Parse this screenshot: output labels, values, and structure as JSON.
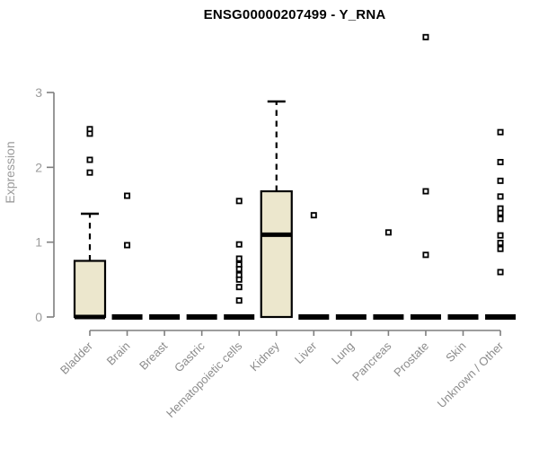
{
  "title": "ENSG00000207499 - Y_RNA",
  "chart_data": {
    "type": "boxplot",
    "title": "ENSG00000207499 - Y_RNA",
    "xlabel": "",
    "ylabel": "Expression",
    "ylim": [
      0,
      3
    ],
    "yticks": [
      "0",
      "1",
      "2",
      "3"
    ],
    "grid": false,
    "legend": null,
    "categories": [
      "Bladder",
      "Brain",
      "Breast",
      "Gastric",
      "Hematopoietic cells",
      "Kidney",
      "Liver",
      "Lung",
      "Pancreas",
      "Prostate",
      "Skin",
      "Unknown / Other"
    ],
    "series": [
      {
        "category": "Bladder",
        "q1": 0,
        "median": 0,
        "q3": 0.75,
        "whisker_low": 0,
        "whisker_high": 1.38,
        "outliers": [
          2.51,
          2.45,
          2.1,
          1.93
        ]
      },
      {
        "category": "Brain",
        "q1": 0,
        "median": 0,
        "q3": 0,
        "whisker_low": 0,
        "whisker_high": 0,
        "outliers": [
          1.62,
          0.96
        ]
      },
      {
        "category": "Breast",
        "q1": 0,
        "median": 0,
        "q3": 0,
        "whisker_low": 0,
        "whisker_high": 0,
        "outliers": []
      },
      {
        "category": "Gastric",
        "q1": 0,
        "median": 0,
        "q3": 0,
        "whisker_low": 0,
        "whisker_high": 0,
        "outliers": []
      },
      {
        "category": "Hematopoietic cells",
        "q1": 0,
        "median": 0,
        "q3": 0,
        "whisker_low": 0,
        "whisker_high": 0,
        "outliers": [
          1.55,
          0.97,
          0.78,
          0.7,
          0.64,
          0.56,
          0.5,
          0.4,
          0.22
        ]
      },
      {
        "category": "Kidney",
        "q1": 0,
        "median": 1.1,
        "q3": 1.68,
        "whisker_low": 0,
        "whisker_high": 2.88,
        "outliers": []
      },
      {
        "category": "Liver",
        "q1": 0,
        "median": 0,
        "q3": 0,
        "whisker_low": 0,
        "whisker_high": 0,
        "outliers": [
          1.36
        ]
      },
      {
        "category": "Lung",
        "q1": 0,
        "median": 0,
        "q3": 0,
        "whisker_low": 0,
        "whisker_high": 0,
        "outliers": []
      },
      {
        "category": "Pancreas",
        "q1": 0,
        "median": 0,
        "q3": 0,
        "whisker_low": 0,
        "whisker_high": 0,
        "outliers": [
          1.13
        ]
      },
      {
        "category": "Prostate",
        "q1": 0,
        "median": 0,
        "q3": 0,
        "whisker_low": 0,
        "whisker_high": 0,
        "outliers": [
          3.74,
          1.68,
          0.83
        ]
      },
      {
        "category": "Skin",
        "q1": 0,
        "median": 0,
        "q3": 0,
        "whisker_low": 0,
        "whisker_high": 0,
        "outliers": []
      },
      {
        "category": "Unknown / Other",
        "q1": 0,
        "median": 0,
        "q3": 0,
        "whisker_low": 0,
        "whisker_high": 0,
        "outliers": [
          2.47,
          2.07,
          1.82,
          1.61,
          1.45,
          1.39,
          1.31,
          1.09,
          0.99,
          0.91,
          0.6
        ]
      }
    ],
    "colors": {
      "box_fill": "#ECE7CD",
      "box_stroke": "#000000",
      "median": "#000000",
      "axis_line": "#7F7F7F",
      "tick_label": "#9B9B9B",
      "category_label": "#8C8C8C",
      "title": "#000000",
      "background": "#FFFFFF"
    }
  }
}
